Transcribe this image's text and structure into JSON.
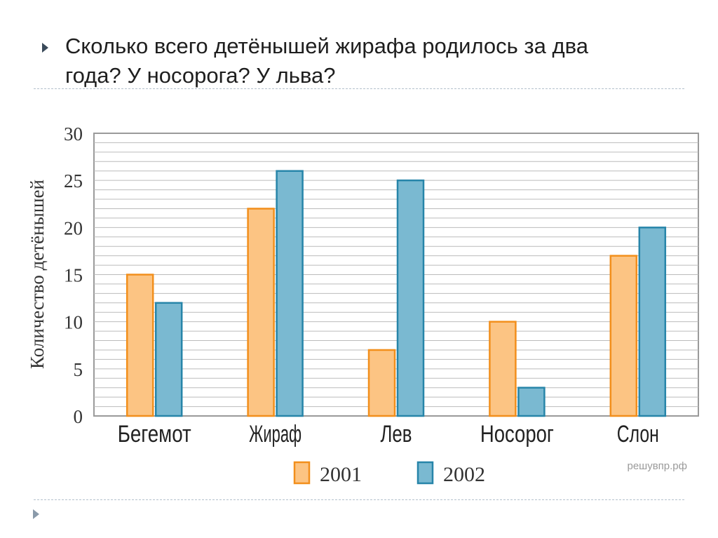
{
  "slide": {
    "question": "Сколько всего детёнышей жирафа родилось за два года? У носорога? У льва?"
  },
  "colors": {
    "series_2001_fill": "#fcc483",
    "series_2001_stroke": "#f28f1c",
    "series_2002_fill": "#7ab9d1",
    "series_2002_stroke": "#2785a9",
    "grid": "#bbbbbb"
  },
  "chart_data": {
    "type": "bar",
    "title": "",
    "xlabel": "",
    "ylabel": "Количество детёнышей",
    "categories": [
      "Бегемот",
      "Жираф",
      "Лев",
      "Носорог",
      "Слон"
    ],
    "series": [
      {
        "name": "2001",
        "values": [
          15,
          22,
          7,
          10,
          17
        ]
      },
      {
        "name": "2002",
        "values": [
          12,
          26,
          25,
          3,
          20
        ]
      }
    ],
    "ylim": [
      0,
      30
    ],
    "yticks": [
      0,
      5,
      10,
      15,
      20,
      25,
      30
    ],
    "grid": true,
    "legend": "bottom",
    "watermark": "решувпр.рф"
  }
}
